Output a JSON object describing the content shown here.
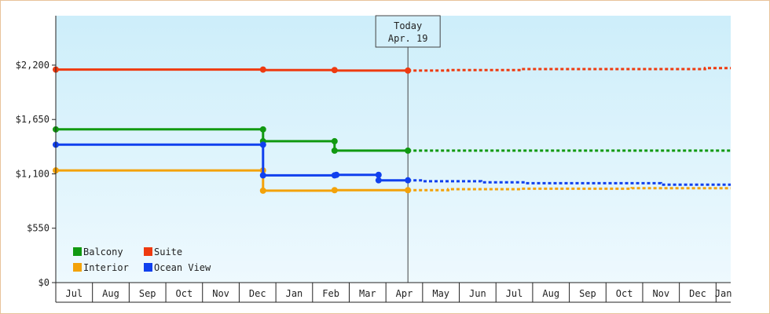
{
  "chart_data": {
    "type": "line",
    "subtype": "step",
    "title": "",
    "xlabel": "",
    "ylabel": "",
    "ylim": [
      0,
      2700
    ],
    "y_ticks": [
      {
        "value": 0,
        "label": "$0"
      },
      {
        "value": 550,
        "label": "$550"
      },
      {
        "value": 1100,
        "label": "$1,100"
      },
      {
        "value": 1650,
        "label": "$1,650"
      },
      {
        "value": 2200,
        "label": "$2,200"
      }
    ],
    "x_months": [
      "Jul",
      "Aug",
      "Sep",
      "Oct",
      "Nov",
      "Dec",
      "Jan",
      "Feb",
      "Mar",
      "Apr",
      "May",
      "Jun",
      "Jul",
      "Aug",
      "Sep",
      "Oct",
      "Nov",
      "Dec",
      "Jan"
    ],
    "x_range": [
      0,
      18.4
    ],
    "today": {
      "title": "Today",
      "date": "Apr. 19",
      "x": 9.6
    },
    "legend": {
      "position": "bottom-left",
      "columns": 2
    },
    "grid": false,
    "background_gradient": [
      "#cdeefa",
      "#eef9fe"
    ],
    "series": [
      {
        "name": "Balcony",
        "color": "#119911",
        "points": [
          [
            0,
            1550
          ],
          [
            5.65,
            1550
          ],
          [
            5.65,
            1430
          ],
          [
            7.6,
            1430
          ],
          [
            7.6,
            1335
          ],
          [
            9.6,
            1335
          ]
        ],
        "markers": [
          [
            0,
            1550
          ],
          [
            5.65,
            1550
          ],
          [
            5.65,
            1430
          ],
          [
            7.6,
            1430
          ],
          [
            7.6,
            1335
          ],
          [
            9.6,
            1335
          ]
        ],
        "forecast": [
          [
            9.6,
            1335
          ],
          [
            18.4,
            1335
          ]
        ]
      },
      {
        "name": "Suite",
        "color": "#ee3a10",
        "points": [
          [
            0,
            2155
          ],
          [
            5.65,
            2155
          ],
          [
            5.65,
            2150
          ],
          [
            7.6,
            2150
          ],
          [
            7.6,
            2145
          ],
          [
            9.6,
            2145
          ]
        ],
        "markers": [
          [
            0,
            2155
          ],
          [
            5.65,
            2155
          ],
          [
            7.6,
            2150
          ],
          [
            9.6,
            2145
          ]
        ],
        "forecast": [
          [
            9.6,
            2145
          ],
          [
            10.7,
            2145
          ],
          [
            10.7,
            2150
          ],
          [
            12.7,
            2150
          ],
          [
            12.7,
            2160
          ],
          [
            17.7,
            2160
          ],
          [
            17.7,
            2170
          ],
          [
            18.4,
            2170
          ]
        ]
      },
      {
        "name": "Interior",
        "color": "#f3a20a",
        "points": [
          [
            0,
            1135
          ],
          [
            5.65,
            1135
          ],
          [
            5.65,
            930
          ],
          [
            7.6,
            930
          ],
          [
            7.6,
            935
          ],
          [
            9.6,
            935
          ]
        ],
        "markers": [
          [
            0,
            1135
          ],
          [
            5.65,
            1135
          ],
          [
            5.65,
            930
          ],
          [
            7.6,
            935
          ],
          [
            9.6,
            935
          ]
        ],
        "forecast": [
          [
            9.6,
            935
          ],
          [
            10.7,
            935
          ],
          [
            10.7,
            945
          ],
          [
            12.7,
            945
          ],
          [
            12.7,
            950
          ],
          [
            15.7,
            950
          ],
          [
            15.7,
            955
          ],
          [
            18.4,
            955
          ]
        ]
      },
      {
        "name": "Ocean View",
        "color": "#1040ee",
        "points": [
          [
            0,
            1395
          ],
          [
            5.65,
            1395
          ],
          [
            5.65,
            1085
          ],
          [
            7.6,
            1085
          ],
          [
            7.6,
            1090
          ],
          [
            8.8,
            1090
          ],
          [
            8.8,
            1035
          ],
          [
            9.6,
            1035
          ]
        ],
        "markers": [
          [
            0,
            1395
          ],
          [
            5.65,
            1395
          ],
          [
            5.65,
            1085
          ],
          [
            7.6,
            1085
          ],
          [
            7.65,
            1090
          ],
          [
            8.8,
            1090
          ],
          [
            8.8,
            1035
          ],
          [
            9.6,
            1035
          ]
        ],
        "forecast": [
          [
            9.6,
            1035
          ],
          [
            10.0,
            1035
          ],
          [
            10.0,
            1025
          ],
          [
            11.6,
            1025
          ],
          [
            11.6,
            1015
          ],
          [
            12.8,
            1015
          ],
          [
            12.8,
            1005
          ],
          [
            16.5,
            1005
          ],
          [
            16.5,
            990
          ],
          [
            18.4,
            990
          ]
        ]
      }
    ]
  }
}
